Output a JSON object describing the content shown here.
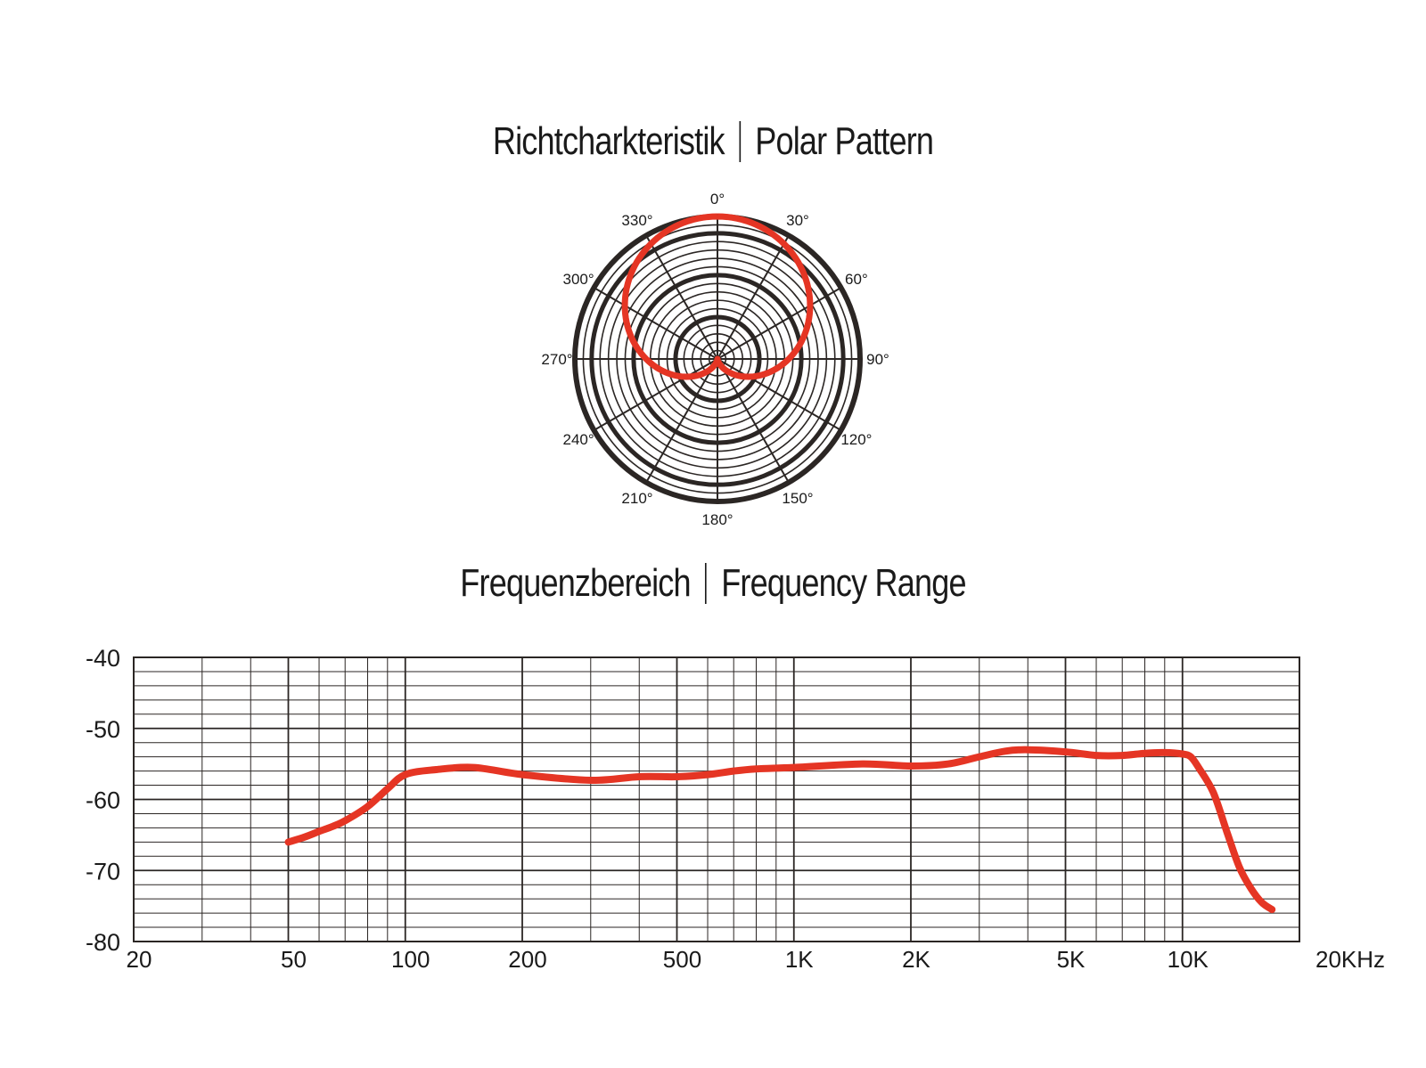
{
  "polar": {
    "title_de": "Richtcharkteristik",
    "title_en": "Polar Pattern",
    "angle_labels": [
      "0°",
      "30°",
      "60°",
      "90°",
      "120°",
      "150°",
      "180°",
      "210°",
      "240°",
      "270°",
      "300°",
      "330°"
    ],
    "pattern": "cardioid",
    "curve_color": "#e53524"
  },
  "frequency": {
    "title_de": "Frequenzbereich",
    "title_en": "Frequency Range",
    "curve_color": "#e53524"
  },
  "chart_data": [
    {
      "type": "polar",
      "title": "Richtcharkteristik | Polar Pattern",
      "theta_labels": [
        "0°",
        "30°",
        "60°",
        "90°",
        "120°",
        "150°",
        "180°",
        "210°",
        "240°",
        "270°",
        "300°",
        "330°"
      ],
      "series": [
        {
          "theta": [
            0,
            30,
            60,
            90,
            120,
            150,
            180,
            210,
            240,
            270,
            300,
            330
          ],
          "r": [
            1.0,
            0.93,
            0.75,
            0.5,
            0.25,
            0.07,
            0.0,
            0.07,
            0.25,
            0.5,
            0.75,
            0.93
          ]
        }
      ]
    },
    {
      "type": "line",
      "title": "Frequenzbereich | Frequency Range",
      "xscale": "log",
      "xlim": [
        20,
        20000
      ],
      "ylim": [
        -80,
        -40
      ],
      "xticks": [
        20,
        50,
        100,
        200,
        500,
        1000,
        2000,
        5000,
        10000,
        20000
      ],
      "xtick_labels": [
        "20",
        "50",
        "100",
        "200",
        "500",
        "1K",
        "2K",
        "5K",
        "10K",
        "20KHz"
      ],
      "yticks": [
        -40,
        -50,
        -60,
        -70,
        -80
      ],
      "ytick_labels": [
        "-40",
        "-50",
        "-60",
        "-70",
        "-80"
      ],
      "grid": true,
      "series": [
        {
          "x": [
            50,
            55,
            60,
            65,
            70,
            80,
            90,
            100,
            120,
            150,
            200,
            300,
            400,
            500,
            600,
            700,
            800,
            1000,
            1500,
            2000,
            2500,
            3000,
            3500,
            4000,
            5000,
            6000,
            7000,
            8000,
            9000,
            10000,
            10500,
            11000,
            12000,
            13000,
            14000,
            15000,
            16000,
            17000
          ],
          "y": [
            -66.0,
            -65.3,
            -64.5,
            -63.8,
            -63.0,
            -61.0,
            -58.5,
            -56.5,
            -55.8,
            -55.5,
            -56.5,
            -57.3,
            -56.8,
            -56.8,
            -56.5,
            -56.0,
            -55.7,
            -55.5,
            -55.0,
            -55.3,
            -55.0,
            -54.0,
            -53.2,
            -53.0,
            -53.3,
            -53.8,
            -53.8,
            -53.5,
            -53.4,
            -53.6,
            -54.0,
            -55.5,
            -59.0,
            -64.5,
            -69.5,
            -72.5,
            -74.5,
            -75.5
          ]
        }
      ]
    }
  ]
}
